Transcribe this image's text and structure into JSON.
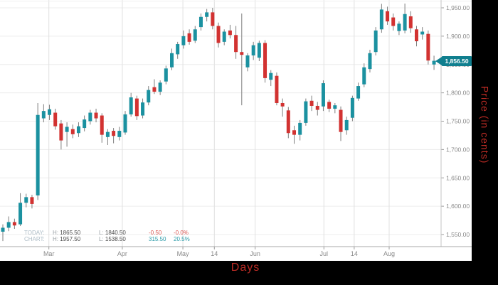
{
  "colors": {
    "up": "#1B91A0",
    "down": "#D23231",
    "wick": "#7E7E7E",
    "grid_h": "#ECECEC",
    "grid_v": "#E0E0E0",
    "axis_line": "#A8A8A8",
    "right_axis_line": "#C6C6C6",
    "tick_text": "#8A8A8A",
    "axis_title": "#BB2B24",
    "tag_bg": "#107F8F",
    "tag_text": "#FFFFFF"
  },
  "chart_data": {
    "type": "candlestick",
    "xlabel": "Days",
    "ylabel": "Price (in cents)",
    "y_axis_range": [
      1550,
      1950
    ],
    "grid": true,
    "last_price": 1856.5,
    "last_price_label": "1,856.50",
    "y_ticks": [
      {
        "label": "1,950.00",
        "value": 1950
      },
      {
        "label": "1,900.00",
        "value": 1900
      },
      {
        "label": "1,850.00",
        "value": 1850
      },
      {
        "label": "1,800.00",
        "value": 1800
      },
      {
        "label": "1,750.00",
        "value": 1750
      },
      {
        "label": "1,700.00",
        "value": 1700
      },
      {
        "label": "1,650.00",
        "value": 1650
      },
      {
        "label": "1,600.00",
        "value": 1600
      },
      {
        "label": "1,550.00",
        "value": 1550
      }
    ],
    "x_ticks": [
      {
        "label": "Mar",
        "index": 7.9
      },
      {
        "label": "Apr",
        "index": 20.5
      },
      {
        "label": "May",
        "index": 30.9
      },
      {
        "label": "14",
        "index": 36.3
      },
      {
        "label": "Jun",
        "index": 43.3
      },
      {
        "label": "Jul",
        "index": 55.1
      },
      {
        "label": "14",
        "index": 60.3
      },
      {
        "label": "Aug",
        "index": 66.3
      }
    ],
    "candles": [
      [
        1555,
        1568,
        1538.5,
        1562
      ],
      [
        1562,
        1582,
        1556,
        1572
      ],
      [
        1572,
        1578,
        1560,
        1566
      ],
      [
        1568,
        1623,
        1565,
        1606
      ],
      [
        1606,
        1622,
        1598,
        1616
      ],
      [
        1616,
        1620,
        1596,
        1604
      ],
      [
        1619,
        1782,
        1611,
        1761
      ],
      [
        1755,
        1780,
        1748,
        1768
      ],
      [
        1761,
        1779,
        1752,
        1771
      ],
      [
        1765,
        1772,
        1735,
        1741
      ],
      [
        1746,
        1752,
        1700,
        1716
      ],
      [
        1731,
        1748,
        1705,
        1740
      ],
      [
        1736,
        1744,
        1720,
        1727
      ],
      [
        1729,
        1748,
        1722,
        1741
      ],
      [
        1738,
        1760,
        1732,
        1753
      ],
      [
        1750,
        1770,
        1744,
        1765
      ],
      [
        1765,
        1772,
        1748,
        1755
      ],
      [
        1760,
        1764,
        1712,
        1726
      ],
      [
        1722,
        1736,
        1708,
        1731
      ],
      [
        1733,
        1738,
        1711,
        1724
      ],
      [
        1722,
        1740,
        1716,
        1733
      ],
      [
        1730,
        1768,
        1726,
        1762
      ],
      [
        1762,
        1800,
        1758,
        1792
      ],
      [
        1790,
        1795,
        1752,
        1759
      ],
      [
        1760,
        1790,
        1755,
        1783
      ],
      [
        1783,
        1812,
        1778,
        1805
      ],
      [
        1810,
        1824,
        1798,
        1802
      ],
      [
        1802,
        1822,
        1796,
        1818
      ],
      [
        1820,
        1848,
        1815,
        1843
      ],
      [
        1845,
        1878,
        1840,
        1870
      ],
      [
        1868,
        1890,
        1860,
        1886
      ],
      [
        1884,
        1910,
        1878,
        1900
      ],
      [
        1905,
        1912,
        1885,
        1890
      ],
      [
        1892,
        1918,
        1888,
        1912
      ],
      [
        1916,
        1940,
        1910,
        1934
      ],
      [
        1934,
        1948,
        1926,
        1942
      ],
      [
        1942,
        1950,
        1912,
        1918
      ],
      [
        1918,
        1924,
        1880,
        1888
      ],
      [
        1890,
        1912,
        1884,
        1908
      ],
      [
        1910,
        1920,
        1896,
        1902
      ],
      [
        1902,
        1918,
        1860,
        1872
      ],
      [
        1872,
        1940,
        1778,
        1867
      ],
      [
        1845,
        1870,
        1838,
        1866
      ],
      [
        1866,
        1890,
        1858,
        1884
      ],
      [
        1862,
        1892,
        1856,
        1888
      ],
      [
        1888,
        1893,
        1818,
        1826
      ],
      [
        1823,
        1840,
        1812,
        1835
      ],
      [
        1830,
        1836,
        1778,
        1782
      ],
      [
        1782,
        1790,
        1758,
        1776
      ],
      [
        1769,
        1775,
        1720,
        1729
      ],
      [
        1734,
        1742,
        1710,
        1726
      ],
      [
        1726,
        1752,
        1716,
        1747
      ],
      [
        1747,
        1790,
        1742,
        1785
      ],
      [
        1786,
        1795,
        1768,
        1777
      ],
      [
        1777,
        1784,
        1760,
        1770
      ],
      [
        1776,
        1822,
        1768,
        1817
      ],
      [
        1784,
        1788,
        1766,
        1772
      ],
      [
        1772,
        1782,
        1764,
        1778
      ],
      [
        1770,
        1776,
        1715,
        1731
      ],
      [
        1734,
        1758,
        1726,
        1752
      ],
      [
        1756,
        1795,
        1750,
        1791
      ],
      [
        1790,
        1818,
        1786,
        1812
      ],
      [
        1815,
        1852,
        1810,
        1845
      ],
      [
        1842,
        1876,
        1836,
        1870
      ],
      [
        1872,
        1916,
        1866,
        1910
      ],
      [
        1912,
        1957,
        1906,
        1947
      ],
      [
        1944,
        1952,
        1920,
        1926
      ],
      [
        1933,
        1940,
        1910,
        1918
      ],
      [
        1909,
        1926,
        1902,
        1922
      ],
      [
        1910,
        1957.5,
        1905,
        1939
      ],
      [
        1935,
        1944,
        1906,
        1914
      ],
      [
        1912,
        1918,
        1882,
        1891
      ],
      [
        1903,
        1916,
        1894,
        1908
      ],
      [
        1904,
        1910,
        1850,
        1857
      ],
      [
        1850,
        1865.5,
        1840.5,
        1856.5
      ]
    ],
    "legend": {
      "rows": [
        {
          "label": "TODAY:",
          "high_prefix": "H:",
          "high": "1865.50",
          "low_prefix": "L:",
          "low": "1840.50",
          "change": "-0.50",
          "percent": "-0.0%",
          "trend": "down"
        },
        {
          "label": "CHART:",
          "high_prefix": "H:",
          "high": "1957.50",
          "low_prefix": "L:",
          "low": "1538.50",
          "change": "315.50",
          "percent": "20.5%",
          "trend": "up"
        }
      ]
    }
  }
}
